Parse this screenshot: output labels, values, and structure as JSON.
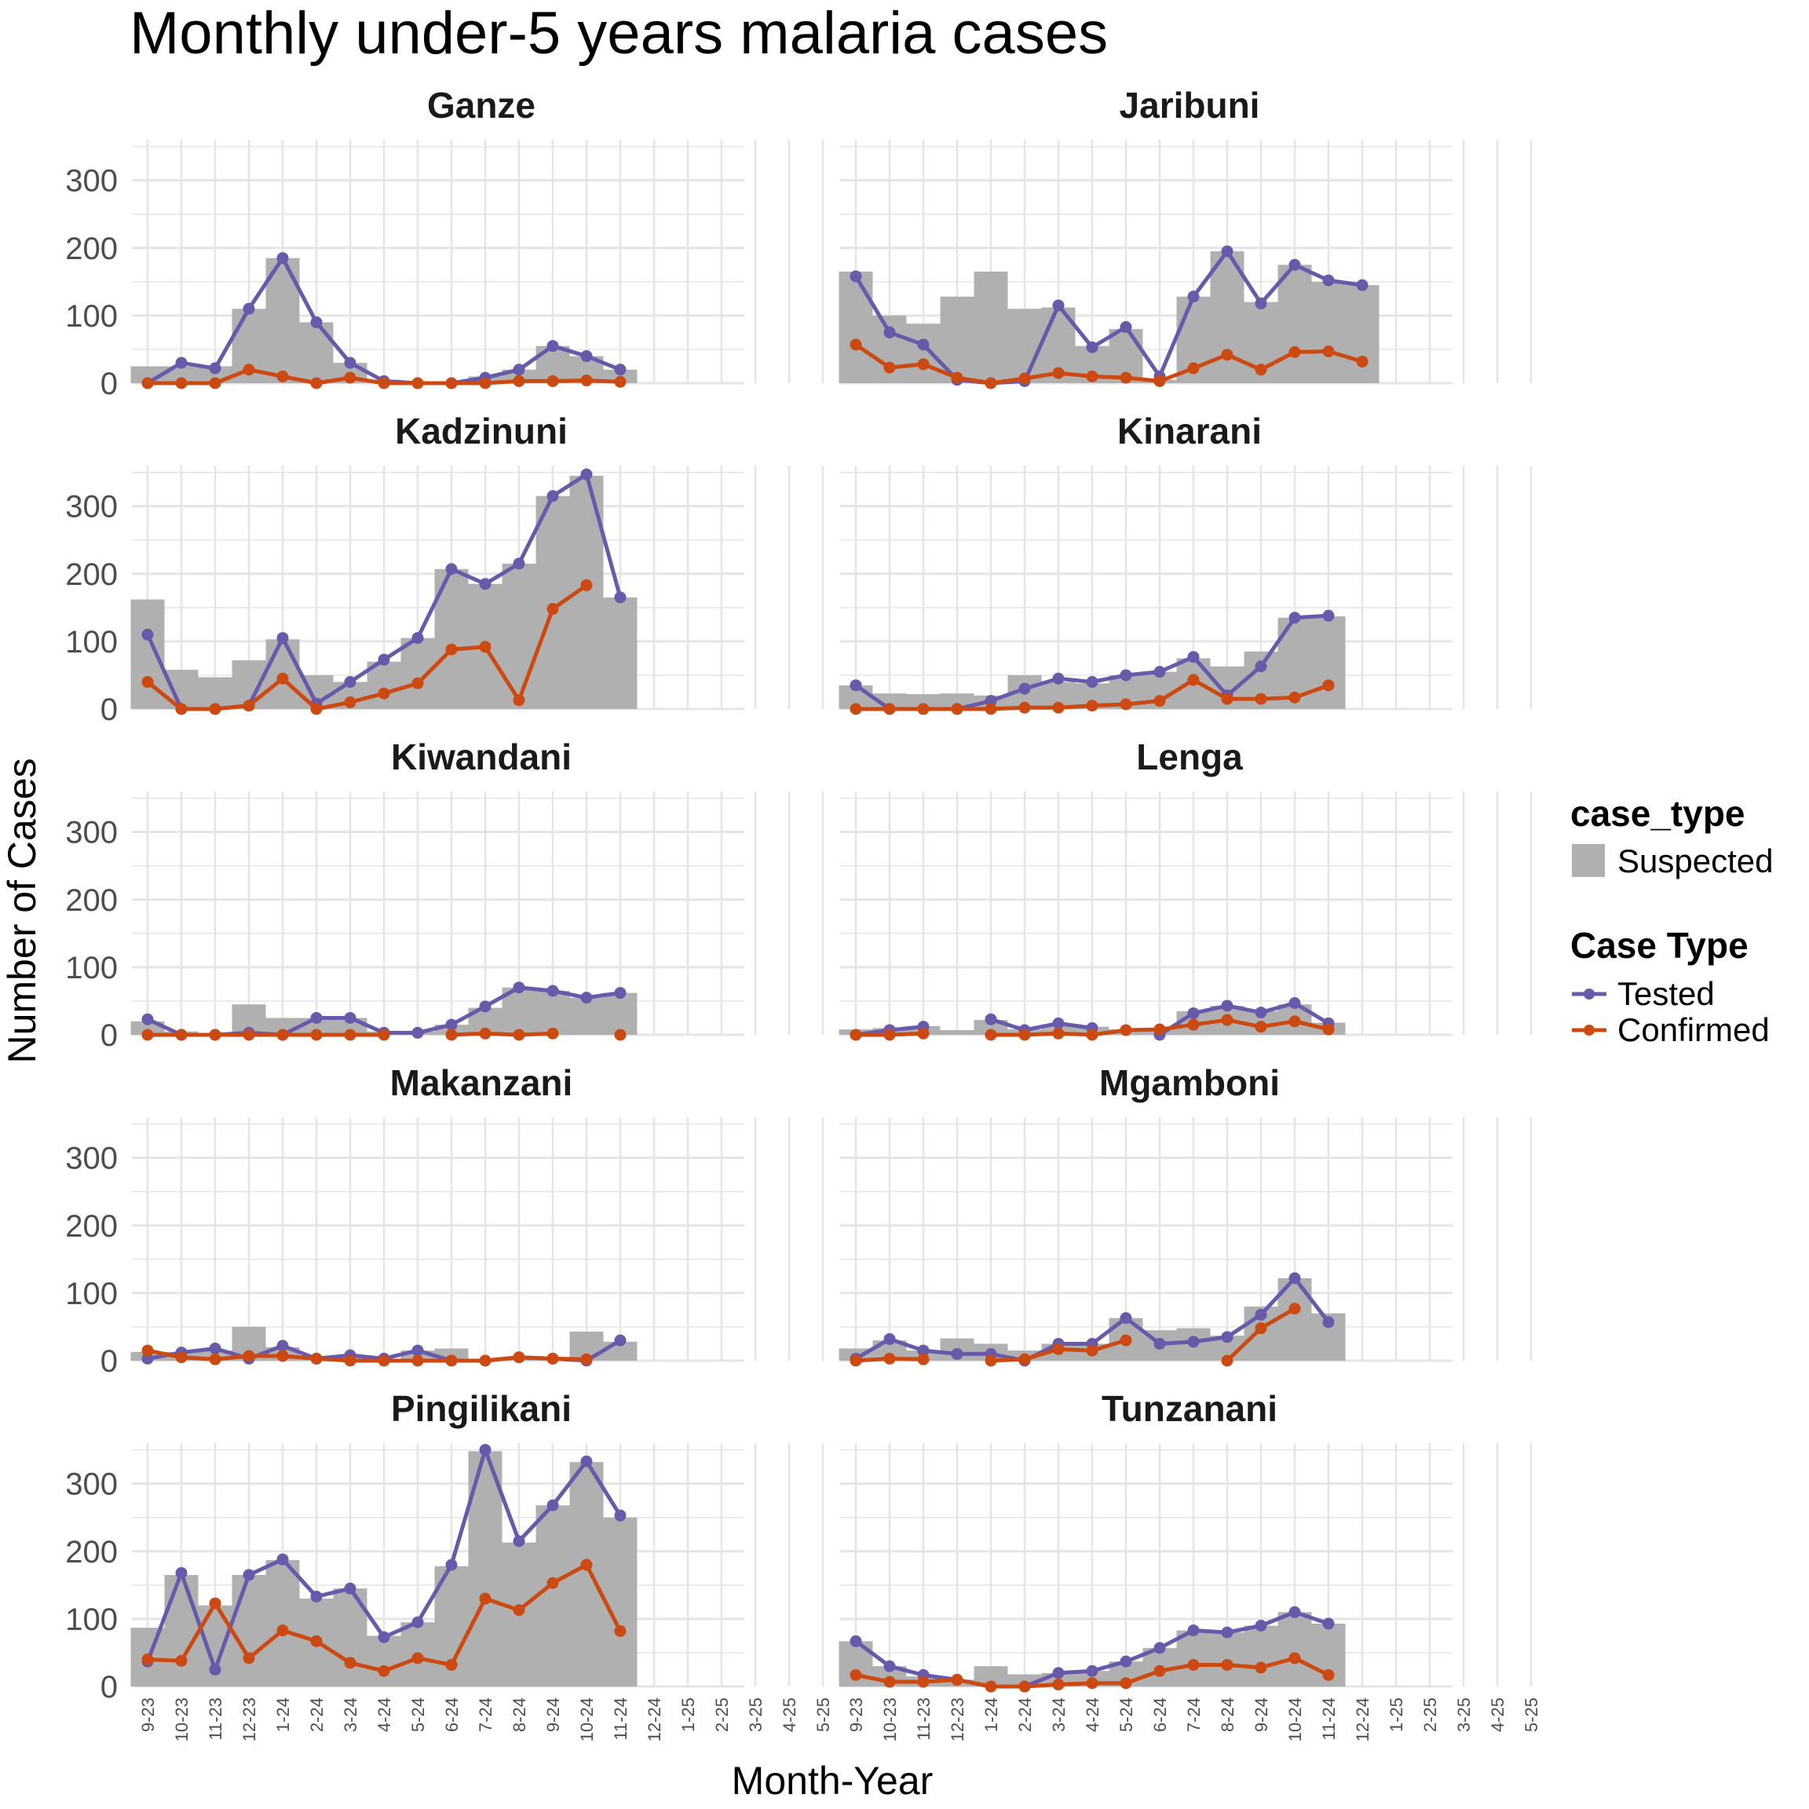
{
  "chart_data": {
    "type": "bar+line",
    "title": "Monthly under-5 years malaria cases",
    "xlabel": "Month-Year",
    "ylabel": "Number of Cases",
    "ylim": [
      0,
      360
    ],
    "yticks": [
      0,
      100,
      200,
      300
    ],
    "grid": true,
    "categories": [
      "9-23",
      "10-23",
      "11-23",
      "12-23",
      "1-24",
      "2-24",
      "3-24",
      "4-24",
      "5-24",
      "6-24",
      "7-24",
      "8-24",
      "9-24",
      "10-24",
      "11-24",
      "12-24",
      "1-25",
      "2-25",
      "3-25",
      "4-25",
      "5-25"
    ],
    "legend": {
      "position": "right",
      "bar_title": "case_type",
      "bar_entries": [
        "Suspected"
      ],
      "line_title": "Case Type",
      "line_entries": [
        "Tested",
        "Confirmed"
      ]
    },
    "colors": {
      "suspected": "#b0b0b0",
      "tested": "#6959aa",
      "confirmed": "#cc4a12",
      "grid": "#e5e5e5"
    },
    "facets": [
      {
        "name": "Ganze",
        "suspected": [
          25,
          25,
          25,
          110,
          185,
          90,
          30,
          5,
          0,
          0,
          10,
          20,
          55,
          40,
          20,
          null,
          null,
          null,
          null,
          null,
          null
        ],
        "tested": [
          0,
          30,
          22,
          110,
          185,
          90,
          30,
          3,
          0,
          0,
          8,
          20,
          55,
          40,
          20,
          null,
          null,
          null,
          null,
          null,
          null
        ],
        "confirmed": [
          0,
          0,
          0,
          20,
          10,
          0,
          8,
          0,
          0,
          0,
          0,
          3,
          3,
          4,
          2,
          null,
          null,
          null,
          null,
          null,
          null
        ]
      },
      {
        "name": "Jaribuni",
        "suspected": [
          165,
          100,
          88,
          128,
          165,
          110,
          112,
          55,
          80,
          5,
          128,
          195,
          120,
          175,
          150,
          145,
          null,
          null,
          null,
          null,
          null
        ],
        "tested": [
          158,
          75,
          57,
          5,
          0,
          3,
          115,
          53,
          83,
          10,
          128,
          195,
          118,
          175,
          152,
          145,
          null,
          null,
          null,
          null,
          null
        ],
        "confirmed": [
          57,
          23,
          28,
          8,
          0,
          7,
          15,
          10,
          8,
          3,
          22,
          42,
          20,
          46,
          47,
          32,
          null,
          null,
          null,
          null,
          null
        ]
      },
      {
        "name": "Kadzinuni",
        "suspected": [
          162,
          58,
          47,
          72,
          103,
          50,
          40,
          70,
          105,
          207,
          185,
          215,
          315,
          345,
          165,
          null,
          null,
          null,
          null,
          null,
          null
        ],
        "tested": [
          110,
          0,
          0,
          5,
          105,
          8,
          40,
          73,
          105,
          207,
          185,
          215,
          315,
          347,
          165,
          null,
          null,
          null,
          null,
          null,
          null
        ],
        "confirmed": [
          40,
          0,
          0,
          5,
          45,
          0,
          10,
          23,
          38,
          88,
          92,
          13,
          148,
          183,
          null,
          null,
          null,
          null,
          null,
          null,
          null
        ]
      },
      {
        "name": "Kinarani",
        "suspected": [
          35,
          23,
          22,
          23,
          20,
          50,
          40,
          38,
          50,
          55,
          75,
          63,
          85,
          135,
          137,
          null,
          null,
          null,
          null,
          null,
          null
        ],
        "tested": [
          35,
          0,
          0,
          0,
          12,
          30,
          45,
          40,
          50,
          55,
          77,
          20,
          63,
          135,
          138,
          null,
          null,
          null,
          null,
          null,
          null
        ],
        "confirmed": [
          0,
          0,
          0,
          0,
          0,
          2,
          2,
          5,
          7,
          12,
          43,
          15,
          15,
          17,
          35,
          null,
          null,
          null,
          null,
          null,
          null
        ]
      },
      {
        "name": "Kiwandani",
        "suspected": [
          20,
          5,
          0,
          45,
          25,
          25,
          25,
          5,
          5,
          15,
          40,
          70,
          65,
          55,
          62,
          null,
          null,
          null,
          null,
          null,
          null
        ],
        "tested": [
          23,
          0,
          0,
          3,
          0,
          25,
          25,
          3,
          3,
          15,
          42,
          70,
          65,
          55,
          62,
          null,
          null,
          null,
          null,
          null,
          null
        ],
        "confirmed": [
          0,
          0,
          0,
          0,
          0,
          0,
          0,
          0,
          null,
          0,
          2,
          0,
          2,
          null,
          0,
          null,
          null,
          null,
          null,
          null,
          null
        ]
      },
      {
        "name": "Lenga",
        "suspected": [
          8,
          10,
          13,
          7,
          22,
          8,
          15,
          12,
          8,
          10,
          35,
          43,
          35,
          45,
          18,
          null,
          null,
          null,
          null,
          null,
          null
        ],
        "tested": [
          0,
          7,
          12,
          null,
          23,
          7,
          17,
          10,
          null,
          0,
          32,
          43,
          33,
          47,
          17,
          null,
          null,
          null,
          null,
          null,
          null
        ],
        "confirmed": [
          0,
          0,
          2,
          null,
          0,
          0,
          2,
          0,
          7,
          8,
          15,
          22,
          12,
          20,
          8,
          null,
          null,
          null,
          null,
          null,
          null
        ]
      },
      {
        "name": "Makanzani",
        "suspected": [
          13,
          13,
          15,
          50,
          20,
          3,
          8,
          0,
          15,
          18,
          3,
          5,
          3,
          43,
          28,
          null,
          null,
          null,
          null,
          null,
          null
        ],
        "tested": [
          3,
          12,
          18,
          3,
          22,
          3,
          8,
          3,
          15,
          0,
          0,
          5,
          3,
          0,
          30,
          null,
          null,
          null,
          null,
          null,
          null
        ],
        "confirmed": [
          15,
          5,
          2,
          7,
          7,
          3,
          0,
          0,
          0,
          0,
          0,
          5,
          3,
          2,
          null,
          null,
          null,
          null,
          null,
          null,
          null
        ]
      },
      {
        "name": "Mgamboni",
        "suspected": [
          18,
          30,
          15,
          33,
          25,
          15,
          25,
          25,
          63,
          45,
          48,
          37,
          80,
          122,
          70,
          null,
          null,
          null,
          null,
          null,
          null
        ],
        "tested": [
          3,
          32,
          15,
          10,
          10,
          0,
          25,
          25,
          63,
          25,
          28,
          35,
          68,
          122,
          57,
          null,
          null,
          null,
          null,
          null,
          null
        ],
        "confirmed": [
          0,
          3,
          2,
          null,
          0,
          2,
          17,
          15,
          30,
          null,
          null,
          0,
          48,
          77,
          null,
          null,
          null,
          null,
          null,
          null,
          null
        ]
      },
      {
        "name": "Pingilikani",
        "suspected": [
          87,
          165,
          120,
          165,
          187,
          130,
          145,
          75,
          95,
          178,
          348,
          213,
          268,
          332,
          250,
          null,
          null,
          null,
          null,
          null,
          null
        ],
        "tested": [
          37,
          168,
          25,
          165,
          188,
          133,
          145,
          73,
          95,
          180,
          350,
          215,
          268,
          333,
          253,
          null,
          null,
          null,
          null,
          null,
          null
        ],
        "confirmed": [
          40,
          38,
          123,
          42,
          83,
          67,
          35,
          23,
          42,
          32,
          130,
          113,
          153,
          180,
          82,
          null,
          null,
          null,
          null,
          null,
          null
        ]
      },
      {
        "name": "Tunzanani",
        "suspected": [
          67,
          30,
          15,
          10,
          30,
          18,
          20,
          23,
          37,
          57,
          83,
          80,
          90,
          110,
          93,
          null,
          null,
          null,
          null,
          null,
          null
        ],
        "tested": [
          67,
          30,
          17,
          10,
          0,
          0,
          20,
          23,
          37,
          57,
          83,
          80,
          90,
          110,
          93,
          null,
          null,
          null,
          null,
          null,
          null
        ],
        "confirmed": [
          17,
          7,
          7,
          10,
          0,
          0,
          3,
          5,
          5,
          23,
          32,
          32,
          28,
          42,
          17,
          null,
          null,
          null,
          null,
          null,
          null
        ]
      }
    ]
  }
}
